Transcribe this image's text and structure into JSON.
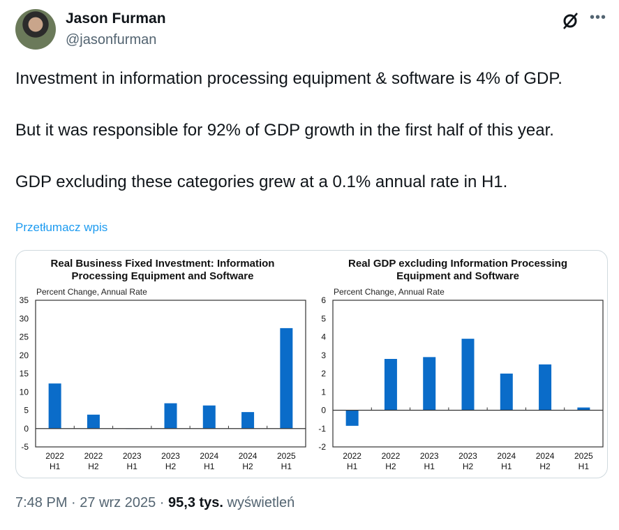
{
  "author": {
    "name": "Jason Furman",
    "handle": "@jasonfurman"
  },
  "body": "Investment in information processing equipment & software is 4% of GDP.\n\nBut it was responsible for 92% of GDP growth in the first half of this year.\n\nGDP excluding these categories grew at a 0.1% annual rate in H1.",
  "translate": "Przetłumacz wpis",
  "footer": {
    "time": "7:48 PM",
    "date": "27 wrz 2025",
    "views": "95,3 tys.",
    "views_label": "wyświetleń",
    "sep": " · "
  },
  "colors": {
    "bar": "#0a6cc9"
  },
  "chart_data": [
    {
      "type": "bar",
      "title": [
        "Real Business Fixed Investment: Information",
        "Processing Equipment and Software"
      ],
      "ylabel": "Percent Change, Annual Rate",
      "categories": [
        [
          "2022",
          "H1"
        ],
        [
          "2022",
          "H2"
        ],
        [
          "2023",
          "H1"
        ],
        [
          "2023",
          "H2"
        ],
        [
          "2024",
          "H1"
        ],
        [
          "2024",
          "H2"
        ],
        [
          "2025",
          "H1"
        ]
      ],
      "values": [
        12.3,
        3.8,
        0.0,
        6.9,
        6.3,
        4.5,
        27.4
      ],
      "ylim": [
        -5,
        35
      ],
      "yticks": [
        -5,
        0,
        5,
        10,
        15,
        20,
        25,
        30,
        35
      ]
    },
    {
      "type": "bar",
      "title": [
        "Real GDP excluding Information Processing",
        "Equipment and Software"
      ],
      "ylabel": "Percent Change, Annual Rate",
      "categories": [
        [
          "2022",
          "H1"
        ],
        [
          "2022",
          "H2"
        ],
        [
          "2023",
          "H1"
        ],
        [
          "2023",
          "H2"
        ],
        [
          "2024",
          "H1"
        ],
        [
          "2024",
          "H2"
        ],
        [
          "2025",
          "H1"
        ]
      ],
      "values": [
        -0.85,
        2.8,
        2.9,
        3.9,
        2.0,
        2.5,
        0.15
      ],
      "ylim": [
        -2,
        6
      ],
      "yticks": [
        -2,
        -1,
        0,
        1,
        2,
        3,
        4,
        5,
        6
      ]
    }
  ]
}
